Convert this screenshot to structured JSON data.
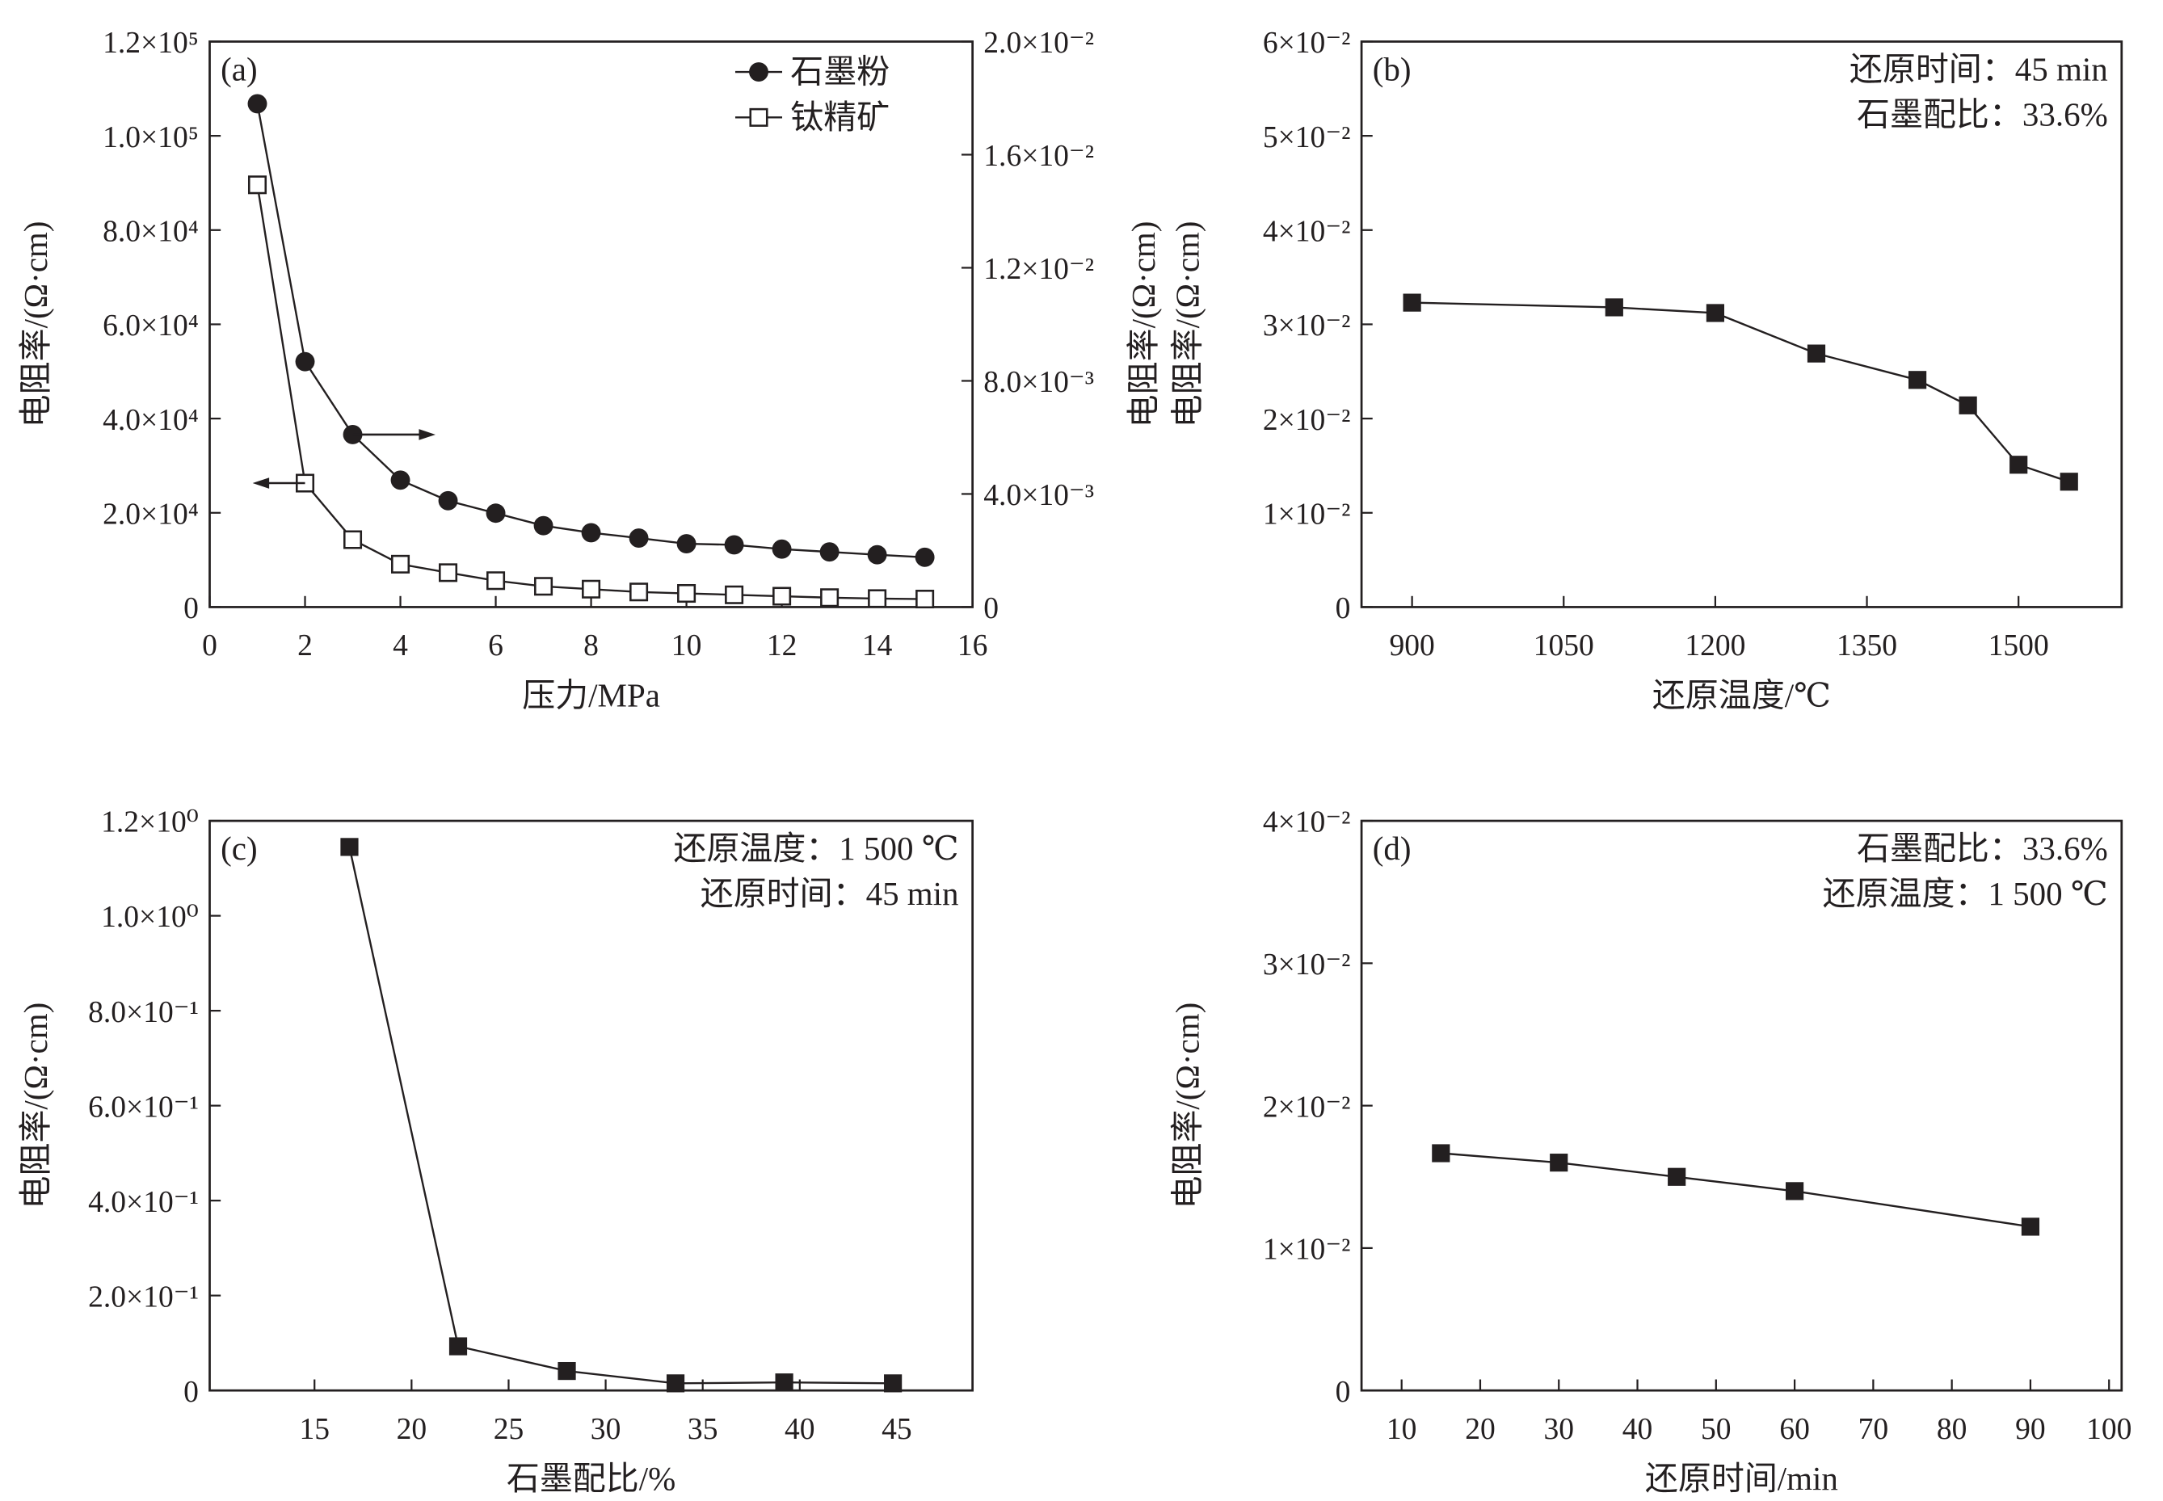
{
  "chart_data": [
    {
      "panel": "(a)",
      "type": "line",
      "xlabel": "压力/MPa",
      "ylabel": "电阻率/(Ω·cm)",
      "y2label": "电阻率/(Ω·cm)",
      "xlim": [
        0,
        16
      ],
      "ylim": [
        0,
        120000
      ],
      "y2lim": [
        0,
        0.02
      ],
      "xticks": [
        "0",
        "2",
        "4",
        "6",
        "8",
        "10",
        "12",
        "14",
        "16"
      ],
      "yticks": [
        "0",
        "2.0×10⁴",
        "4.0×10⁴",
        "6.0×10⁴",
        "8.0×10⁴",
        "1.0×10⁵",
        "1.2×10⁵"
      ],
      "y2ticks": [
        "0",
        "4.0×10⁻³",
        "8.0×10⁻³",
        "1.2×10⁻²",
        "1.6×10⁻²",
        "2.0×10⁻²"
      ],
      "legend_position": "top-right",
      "x": [
        1,
        2,
        3,
        4,
        5,
        6,
        7,
        8,
        9,
        10,
        11,
        12,
        13,
        14,
        15
      ],
      "series": [
        {
          "name": "石墨粉",
          "axis": "right",
          "marker": "filled-circle",
          "values": [
            0.0178,
            0.00868,
            0.0061,
            0.00449,
            0.00376,
            0.00332,
            0.00288,
            0.00263,
            0.00244,
            0.00224,
            0.0022,
            0.00205,
            0.00195,
            0.00185,
            0.00176
          ]
        },
        {
          "name": "钛精矿",
          "axis": "left",
          "marker": "open-square",
          "values": [
            89600,
            26300,
            14300,
            9100,
            7300,
            5600,
            4400,
            3800,
            3200,
            2900,
            2600,
            2300,
            2000,
            1800,
            1700
          ]
        }
      ]
    },
    {
      "panel": "(b)",
      "type": "line",
      "xlabel": "还原温度/℃",
      "ylabel": "电阻率/(Ω·cm)",
      "xlim": [
        850,
        1602
      ],
      "ylim": [
        0,
        0.06
      ],
      "xticks": [
        "900",
        "1050",
        "1200",
        "1350",
        "1500"
      ],
      "yticks": [
        "0",
        "1×10⁻²",
        "2×10⁻²",
        "3×10⁻²",
        "4×10⁻²",
        "5×10⁻²",
        "6×10⁻²"
      ],
      "annotations": [
        "还原时间：45 min",
        "石墨配比：33.6%"
      ],
      "x": [
        900,
        1100,
        1200,
        1300,
        1400,
        1450,
        1500,
        1550
      ],
      "series": [
        {
          "marker": "filled-square",
          "values": [
            0.0323,
            0.0318,
            0.0312,
            0.0269,
            0.0241,
            0.0214,
            0.0151,
            0.0133
          ]
        }
      ]
    },
    {
      "panel": "(c)",
      "type": "line",
      "xlabel": "石墨配比/%",
      "ylabel": "电阻率/(Ω·cm)",
      "xlim": [
        9.6,
        48.9
      ],
      "ylim": [
        0,
        1.2
      ],
      "xticks": [
        "15",
        "20",
        "25",
        "30",
        "35",
        "40",
        "45"
      ],
      "yticks": [
        "0",
        "2.0×10⁻¹",
        "4.0×10⁻¹",
        "6.0×10⁻¹",
        "8.0×10⁻¹",
        "1.0×10⁰",
        "1.2×10⁰"
      ],
      "annotations": [
        "还原温度：1 500 ℃",
        "还原时间：45 min"
      ],
      "x": [
        16.8,
        22.4,
        28,
        33.6,
        39.2,
        44.8
      ],
      "series": [
        {
          "marker": "filled-square",
          "values": [
            1.145,
            0.093,
            0.041,
            0.015,
            0.017,
            0.015
          ]
        }
      ]
    },
    {
      "panel": "(d)",
      "type": "line",
      "xlabel": "还原时间/min",
      "ylabel": "电阻率/(Ω·cm)",
      "xlim": [
        4.9,
        101.6
      ],
      "ylim": [
        0,
        0.04
      ],
      "xticks": [
        "10",
        "20",
        "30",
        "40",
        "50",
        "60",
        "70",
        "80",
        "90",
        "100"
      ],
      "yticks": [
        "0",
        "1×10⁻²",
        "2×10⁻²",
        "3×10⁻²",
        "4×10⁻²"
      ],
      "annotations": [
        "石墨配比：33.6%",
        "还原温度：1 500 ℃"
      ],
      "x": [
        15,
        30,
        45,
        60,
        90
      ],
      "series": [
        {
          "marker": "filled-square",
          "values": [
            0.01666,
            0.016,
            0.015,
            0.014,
            0.0115
          ]
        }
      ]
    }
  ]
}
